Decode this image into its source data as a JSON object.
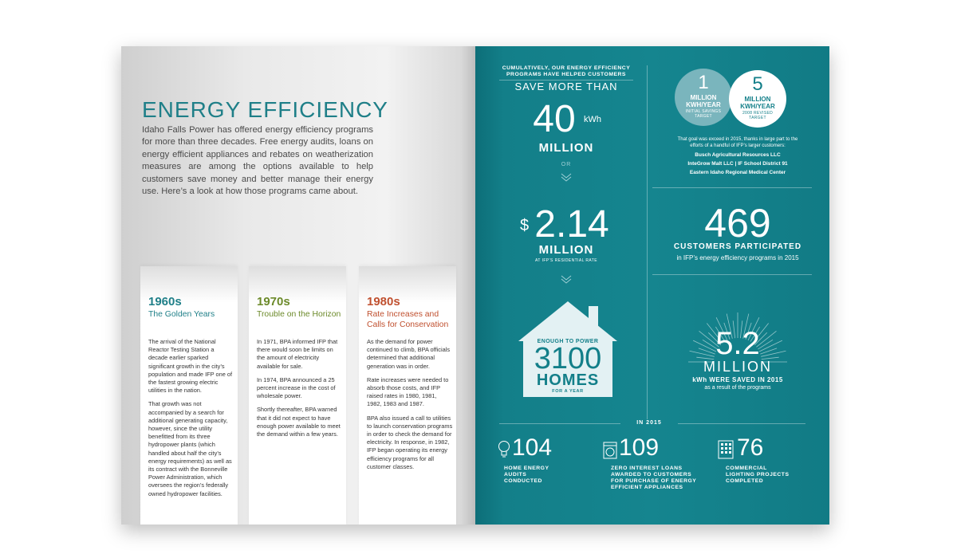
{
  "left": {
    "title": "ENERGY EFFICIENCY",
    "intro": "Idaho Falls Power has offered energy efficiency programs for more than three decades. Free energy audits, loans on energy efficient appliances and rebates on weatherization measures are among the options available to help customers save money and better manage their energy use. Here’s a look at how those programs came about.",
    "eras": [
      {
        "decade": "1960s",
        "subtitle": "The Golden Years",
        "paragraphs": [
          "The arrival of the National Reactor Testing Station a decade earlier sparked significant growth in the city’s population and made IFP one of the fastest growing electric utilities in the nation.",
          "That growth was not accompanied by a search for additional generating capacity, however, since the utility benefitted from its three hydropower plants (which handled about half the city’s energy requirements) as well as its contract with the Bonneville Power Administration, which oversees the region’s federally owned hydropower facilities."
        ]
      },
      {
        "decade": "1970s",
        "subtitle": "Trouble on the Horizon",
        "paragraphs": [
          "In 1971, BPA informed IFP that there would soon be limits on the amount of electricity available for sale.",
          "In 1974, BPA announced a 25 percent increase in the cost of wholesale power.",
          "Shortly thereafter, BPA warned that it did not expect to have enough power available to meet the demand within a few years."
        ]
      },
      {
        "decade": "1980s",
        "subtitle": "Rate Increases and Calls for Conservation",
        "paragraphs": [
          "As the demand for power continued to climb, BPA officials determined that additional generation was in order.",
          "Rate increases were needed to absorb those costs, and IFP raised rates in 1980, 1981, 1982, 1983 and 1987.",
          "BPA also issued a call to utilities to launch conservation programs in order to check the demand for electricity. In response, in 1982, IFP began operating its energy efficiency programs for all customer classes."
        ]
      }
    ]
  },
  "right": {
    "cumulative_line1": "CUMULATIVELY, OUR ENERGY EFFICIENCY",
    "cumulative_line2": "PROGRAMS HAVE HELPED CUSTOMERS",
    "save_more_than": "SAVE MORE THAN",
    "kwh_number": "40",
    "kwh_unit": "kWh",
    "kwh_million": "MILLION",
    "or": "OR",
    "dollar_sign": "$",
    "dollar_number": "2.14",
    "dollar_million": "MILLION",
    "dollar_note": "AT IFP’S RESIDENTIAL RATE",
    "house_top": "ENOUGH TO POWER",
    "house_number": "3100",
    "house_homes": "HOMES",
    "house_bottom": "FOR A YEAR",
    "target_initial": {
      "number": "1",
      "unit_line1": "MILLION",
      "unit_line2": "KWH/YEAR",
      "note_line1": "INITIAL SAVINGS",
      "note_line2": "TARGET"
    },
    "target_revised": {
      "number": "5",
      "unit_line1": "MILLION",
      "unit_line2": "KWH/YEAR",
      "note_line1": "2008 REVISED",
      "note_line2": "TARGET"
    },
    "goal_line1": "That goal was exceed in 2015, thanks in large part to the",
    "goal_line2": "efforts of a handful of IFP’s larger customers:",
    "customer1": "Busch Agricultural Resources LLC",
    "customer2": "InteGrow Malt LLC",
    "customer_sep": "|",
    "customer3": "IF School District 91",
    "customer4": "Eastern Idaho Regional Medical Center",
    "participants_number": "469",
    "participants_label": "CUSTOMERS PARTICIPATED",
    "participants_note": "in IFP’s energy efficiency programs in 2015",
    "saved_number": "5.2",
    "saved_million": "MILLION",
    "saved_label": "kWh WERE SAVED IN 2015",
    "saved_note": "as a result of the programs",
    "in_2015": "IN 2015",
    "bottom_stats": [
      {
        "number": "104",
        "icon": "light-bulb-icon",
        "line1": "HOME ENERGY",
        "line2": "AUDITS",
        "line3": "CONDUCTED"
      },
      {
        "number": "109",
        "icon": "washing-machine-icon",
        "line1": "ZERO INTEREST LOANS",
        "line2": "AWARDED TO CUSTOMERS",
        "line3": "FOR PURCHASE OF ENERGY",
        "line4": "EFFICIENT APPLIANCES"
      },
      {
        "number": "76",
        "icon": "office-building-icon",
        "line1": "COMMERCIAL",
        "line2": "LIGHTING PROJECTS",
        "line3": "COMPLETED"
      }
    ]
  }
}
